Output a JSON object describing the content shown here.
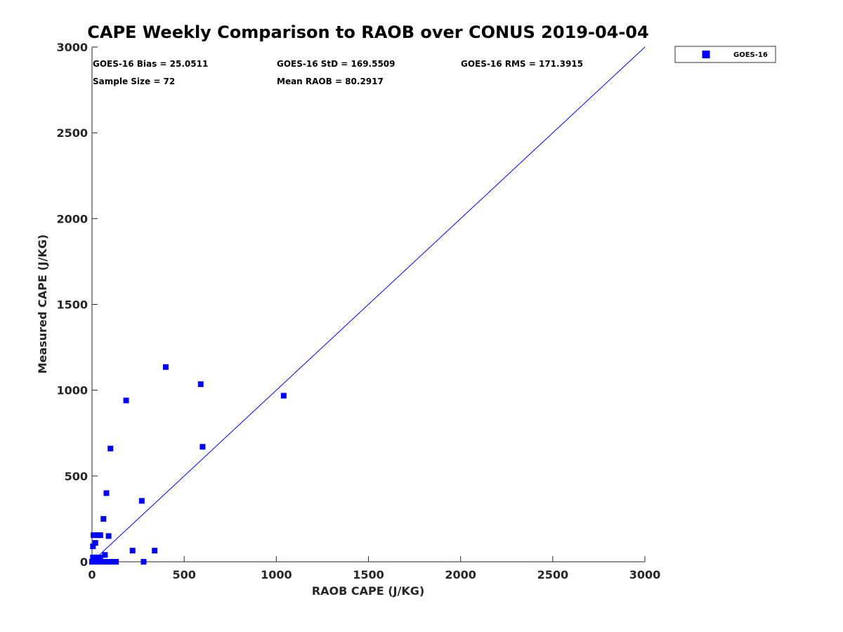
{
  "chart_data": {
    "type": "scatter",
    "title": "CAPE Weekly Comparison to RAOB over CONUS 2019-04-04",
    "xlabel": "RAOB CAPE (J/KG)",
    "ylabel": "Measured CAPE (J/KG)",
    "xlim": [
      0,
      3000
    ],
    "ylim": [
      0,
      3000
    ],
    "xticks": [
      0,
      500,
      1000,
      1500,
      2000,
      2500,
      3000
    ],
    "yticks": [
      0,
      500,
      1000,
      1500,
      2000,
      2500,
      3000
    ],
    "grid": false,
    "legend_position": "outside top-right",
    "reference_line": {
      "name": "1:1 line",
      "x": [
        0,
        3000
      ],
      "y": [
        0,
        3000
      ],
      "color": "#0000ff"
    },
    "series": [
      {
        "name": "GOES-16",
        "marker": "square",
        "color": "#0000ff",
        "points": [
          [
            400,
            1135
          ],
          [
            590,
            1035
          ],
          [
            1040,
            968
          ],
          [
            185,
            940
          ],
          [
            600,
            670
          ],
          [
            100,
            660
          ],
          [
            78,
            400
          ],
          [
            270,
            355
          ],
          [
            62,
            250
          ],
          [
            8,
            155
          ],
          [
            22,
            155
          ],
          [
            35,
            155
          ],
          [
            45,
            155
          ],
          [
            90,
            150
          ],
          [
            18,
            110
          ],
          [
            5,
            90
          ],
          [
            220,
            65
          ],
          [
            340,
            65
          ],
          [
            70,
            40
          ],
          [
            5,
            25
          ],
          [
            15,
            25
          ],
          [
            25,
            25
          ],
          [
            35,
            25
          ],
          [
            45,
            25
          ],
          [
            0,
            0
          ],
          [
            5,
            0
          ],
          [
            10,
            0
          ],
          [
            15,
            0
          ],
          [
            20,
            0
          ],
          [
            25,
            0
          ],
          [
            30,
            0
          ],
          [
            35,
            0
          ],
          [
            40,
            0
          ],
          [
            45,
            0
          ],
          [
            50,
            0
          ],
          [
            55,
            0
          ],
          [
            60,
            0
          ],
          [
            65,
            0
          ],
          [
            70,
            0
          ],
          [
            75,
            0
          ],
          [
            80,
            0
          ],
          [
            85,
            0
          ],
          [
            90,
            0
          ],
          [
            95,
            0
          ],
          [
            100,
            0
          ],
          [
            105,
            0
          ],
          [
            110,
            0
          ],
          [
            115,
            0
          ],
          [
            120,
            0
          ],
          [
            125,
            0
          ],
          [
            130,
            0
          ],
          [
            280,
            0
          ]
        ]
      }
    ],
    "annotations": {
      "bias": "GOES-16 Bias = 25.0511",
      "std": "GOES-16 StD = 169.5509",
      "rms": "GOES-16 RMS = 171.3915",
      "sample_size": "Sample Size = 72",
      "mean_raob": "Mean RAOB = 80.2917"
    }
  }
}
